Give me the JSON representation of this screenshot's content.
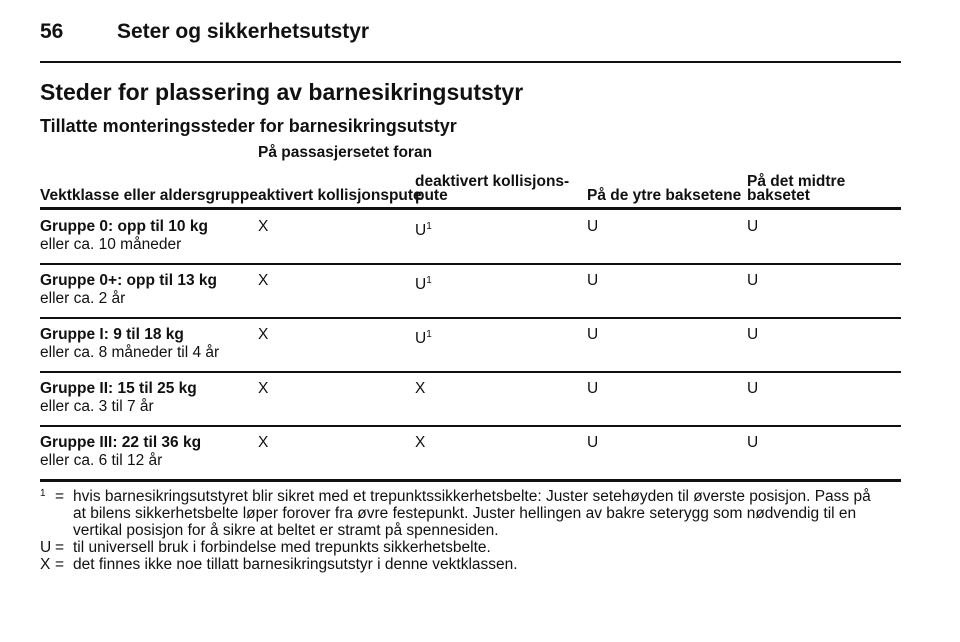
{
  "header": {
    "page_number": "56",
    "section": "Seter og sikkerhetsutstyr"
  },
  "title": "Steder for plassering av barnesikringsutstyr",
  "subtitle": "Tillatte monteringssteder for barnesikringsutstyr",
  "table": {
    "group_header": "På passasjersetet foran",
    "columns": [
      [
        "Vektklasse eller aldersgruppe"
      ],
      [
        "aktivert kollisjonspute"
      ],
      [
        "deaktivert kollisjons-",
        "pute"
      ],
      [
        "På de ytre baksetene"
      ],
      [
        "På det midtre",
        "baksetet"
      ]
    ],
    "rows": [
      {
        "group": "Gruppe 0: opp til 10 kg",
        "desc": "eller ca. 10 måneder",
        "cells": [
          {
            "text": "X"
          },
          {
            "text": "U",
            "note": "1"
          },
          {
            "text": "U"
          },
          {
            "text": "U"
          }
        ]
      },
      {
        "group": "Gruppe 0+: opp til 13 kg",
        "desc": "eller ca. 2 år",
        "cells": [
          {
            "text": "X"
          },
          {
            "text": "U",
            "note": "1"
          },
          {
            "text": "U"
          },
          {
            "text": "U"
          }
        ]
      },
      {
        "group": "Gruppe I: 9 til 18 kg",
        "desc": "eller ca. 8 måneder til 4 år",
        "cells": [
          {
            "text": "X"
          },
          {
            "text": "U",
            "note": "1"
          },
          {
            "text": "U"
          },
          {
            "text": "U"
          }
        ]
      },
      {
        "group": "Gruppe II: 15 til 25 kg",
        "desc": "eller ca. 3 til 7 år",
        "cells": [
          {
            "text": "X"
          },
          {
            "text": "X"
          },
          {
            "text": "U"
          },
          {
            "text": "U"
          }
        ]
      },
      {
        "group": "Gruppe III: 22 til 36 kg",
        "desc": "eller ca. 6 til 12 år",
        "cells": [
          {
            "text": "X"
          },
          {
            "text": "X"
          },
          {
            "text": "U"
          },
          {
            "text": "U"
          }
        ]
      }
    ]
  },
  "footnotes": [
    {
      "mark": "1",
      "sep": "=",
      "lines": [
        "hvis barnesikringsutstyret blir sikret med et trepunktssikkerhetsbelte: Juster setehøyden til øverste posisjon. Pass på",
        "at bilens sikkerhetsbelte løper forover fra øvre festepunkt. Juster hellingen av bakre seterygg som nødvendig til en",
        "vertikal posisjon for å sikre at beltet er stramt på spennesiden."
      ]
    },
    {
      "mark": "U",
      "sep": "=",
      "lines": [
        "til universell bruk i forbindelse med trepunkts sikkerhetsbelte."
      ]
    },
    {
      "mark": "X",
      "sep": "=",
      "lines": [
        "det finnes ikke noe tillatt barnesikringsutstyr i denne vektklassen."
      ]
    }
  ]
}
